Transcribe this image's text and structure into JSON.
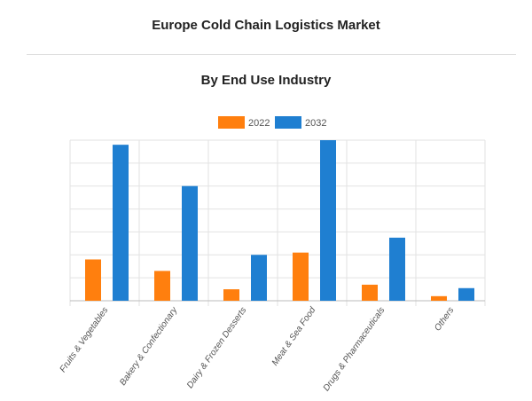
{
  "header": {
    "title": "Europe Cold Chain Logistics Market",
    "subtitle": "By End Use Industry"
  },
  "chart_data": {
    "type": "bar",
    "title": "Europe Cold Chain Logistics Market",
    "subtitle": "By End Use Industry",
    "xlabel": "",
    "ylabel": "",
    "categories": [
      "Fruits & Vegetables",
      "Bakery & Confectionary",
      "Dairy & Frozen Desserts",
      "Meat & Sea Food",
      "Drugs & Pharmaceuticals",
      "Others"
    ],
    "series": [
      {
        "name": "2022",
        "color": "#ff7f0e",
        "values": [
          1.8,
          1.3,
          0.5,
          2.1,
          0.7,
          0.2
        ]
      },
      {
        "name": "2032",
        "color": "#1f7fd1",
        "values": [
          6.8,
          5.0,
          2.0,
          7.0,
          2.75,
          0.55
        ]
      }
    ],
    "ylim": [
      0,
      7
    ],
    "grid": true,
    "y_ticks_shown": false,
    "legend_position": "top-center"
  }
}
